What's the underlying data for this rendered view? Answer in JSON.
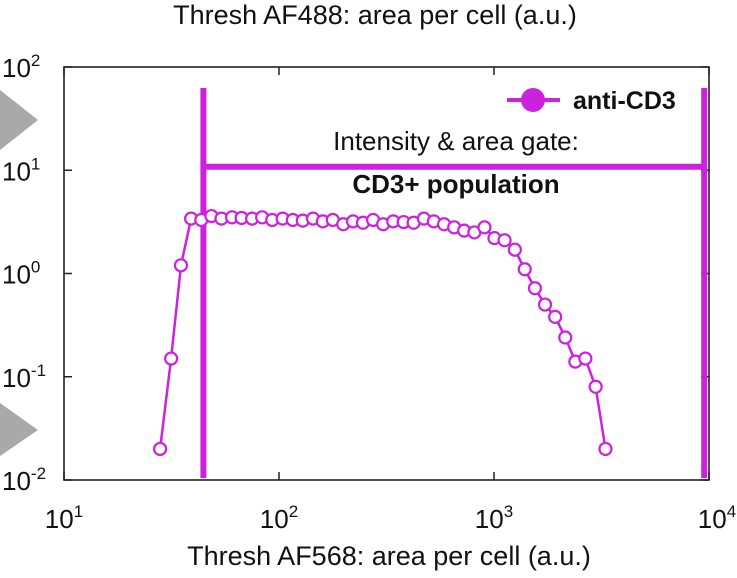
{
  "chart_data": {
    "type": "line",
    "title": "Thresh AF488: area per cell (a.u.)",
    "xlabel": "Thresh AF568: area per cell (a.u.)",
    "ylabel": "",
    "xscale": "log",
    "yscale": "log",
    "xlim": [
      10,
      10000
    ],
    "ylim": [
      0.01,
      100
    ],
    "x_ticks": [
      {
        "base": "10",
        "exp": "1"
      },
      {
        "base": "10",
        "exp": "2"
      },
      {
        "base": "10",
        "exp": "3"
      },
      {
        "base": "10",
        "exp": "4"
      }
    ],
    "y_ticks": [
      {
        "base": "10",
        "exp": "-2"
      },
      {
        "base": "10",
        "exp": "-1"
      },
      {
        "base": "10",
        "exp": "0"
      },
      {
        "base": "10",
        "exp": "1"
      },
      {
        "base": "10",
        "exp": "2"
      }
    ],
    "grid": false,
    "legend_position": "top-right",
    "color": "#cc22dd",
    "series": [
      {
        "name": "anti-CD3",
        "marker": "open-circle",
        "x": [
          28,
          31.5,
          35,
          39,
          43.5,
          48.5,
          54,
          60.5,
          67,
          75,
          83.5,
          93,
          104,
          116,
          129,
          144,
          160,
          178,
          199,
          221,
          246,
          274,
          305,
          340,
          380,
          423,
          472,
          525,
          586,
          653,
          727,
          810,
          903,
          1005,
          1120,
          1250,
          1390,
          1550,
          1727,
          1925,
          2145,
          2390,
          2660,
          2970,
          3300
        ],
        "y": [
          0.02,
          0.15,
          1.2,
          3.4,
          3.3,
          3.6,
          3.4,
          3.5,
          3.45,
          3.4,
          3.5,
          3.3,
          3.4,
          3.3,
          3.25,
          3.4,
          3.2,
          3.3,
          3.0,
          3.2,
          3.1,
          3.3,
          3.0,
          3.2,
          3.15,
          3.1,
          3.4,
          3.2,
          3.0,
          2.8,
          2.6,
          2.5,
          2.8,
          2.2,
          2.1,
          1.7,
          1.1,
          0.72,
          0.5,
          0.38,
          0.24,
          0.14,
          0.15,
          0.08,
          0.02
        ]
      }
    ],
    "gate": {
      "title": "Intensity & area gate:",
      "label": "CD3+ population",
      "x_min": 44.5,
      "x_max": 9500,
      "y_line": 10.8
    }
  }
}
